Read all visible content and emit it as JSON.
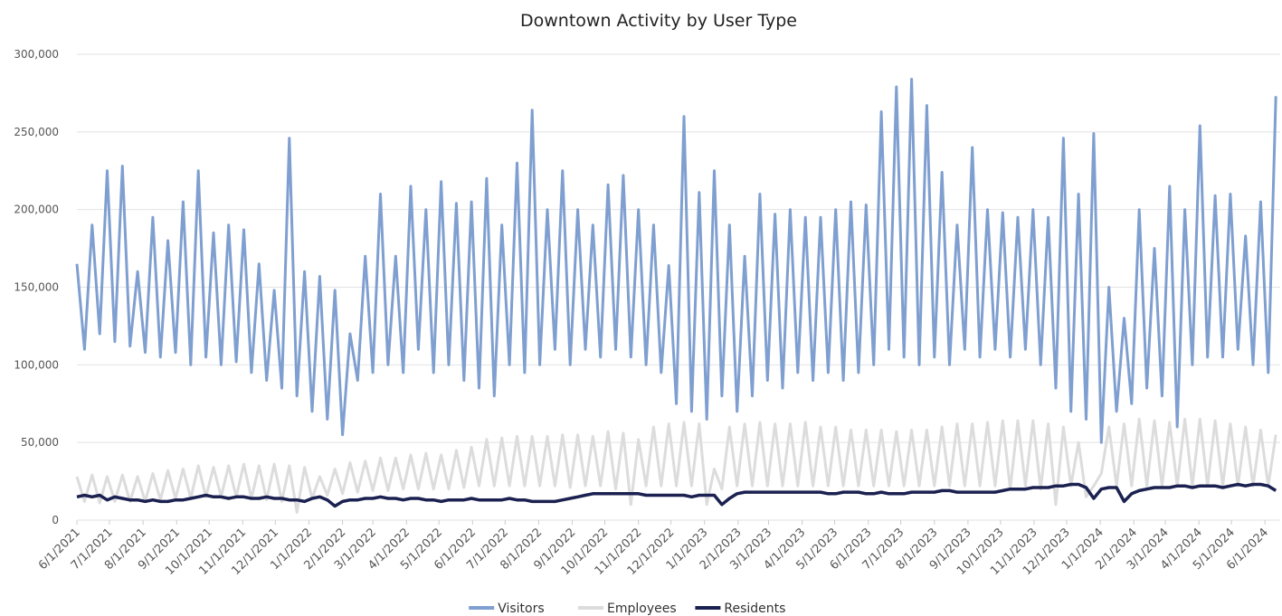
{
  "chart_data": {
    "type": "line",
    "title": "Downtown Activity by User Type",
    "x": [
      "2021-06-01",
      "2021-06-08",
      "2021-06-15",
      "2021-06-22",
      "2021-06-29",
      "2021-07-06",
      "2021-07-13",
      "2021-07-20",
      "2021-07-27",
      "2021-08-03",
      "2021-08-10",
      "2021-08-17",
      "2021-08-24",
      "2021-08-31",
      "2021-09-07",
      "2021-09-14",
      "2021-09-21",
      "2021-09-28",
      "2021-10-05",
      "2021-10-12",
      "2021-10-19",
      "2021-10-26",
      "2021-11-02",
      "2021-11-09",
      "2021-11-16",
      "2021-11-23",
      "2021-11-30",
      "2021-12-07",
      "2021-12-14",
      "2021-12-21",
      "2021-12-28",
      "2022-01-04",
      "2022-01-11",
      "2022-01-18",
      "2022-01-25",
      "2022-02-01",
      "2022-02-08",
      "2022-02-15",
      "2022-02-22",
      "2022-03-01",
      "2022-03-08",
      "2022-03-15",
      "2022-03-22",
      "2022-03-29",
      "2022-04-05",
      "2022-04-12",
      "2022-04-19",
      "2022-04-26",
      "2022-05-03",
      "2022-05-10",
      "2022-05-17",
      "2022-05-24",
      "2022-05-31",
      "2022-06-07",
      "2022-06-14",
      "2022-06-21",
      "2022-06-28",
      "2022-07-05",
      "2022-07-12",
      "2022-07-19",
      "2022-07-26",
      "2022-08-02",
      "2022-08-09",
      "2022-08-16",
      "2022-08-23",
      "2022-08-30",
      "2022-09-06",
      "2022-09-13",
      "2022-09-20",
      "2022-09-27",
      "2022-10-04",
      "2022-10-11",
      "2022-10-18",
      "2022-10-25",
      "2022-11-01",
      "2022-11-08",
      "2022-11-15",
      "2022-11-22",
      "2022-11-29",
      "2022-12-06",
      "2022-12-13",
      "2022-12-20",
      "2022-12-27",
      "2023-01-03",
      "2023-01-10",
      "2023-01-17",
      "2023-01-24",
      "2023-01-31",
      "2023-02-07",
      "2023-02-14",
      "2023-02-21",
      "2023-02-28",
      "2023-03-07",
      "2023-03-14",
      "2023-03-21",
      "2023-03-28",
      "2023-04-04",
      "2023-04-11",
      "2023-04-18",
      "2023-04-25",
      "2023-05-02",
      "2023-05-09",
      "2023-05-16",
      "2023-05-23",
      "2023-05-30",
      "2023-06-06",
      "2023-06-13",
      "2023-06-20",
      "2023-06-27",
      "2023-07-04",
      "2023-07-11",
      "2023-07-18",
      "2023-07-25",
      "2023-08-01",
      "2023-08-08",
      "2023-08-15",
      "2023-08-22",
      "2023-08-29",
      "2023-09-05",
      "2023-09-12",
      "2023-09-19",
      "2023-09-26",
      "2023-10-03",
      "2023-10-10",
      "2023-10-17",
      "2023-10-24",
      "2023-10-31",
      "2023-11-07",
      "2023-11-14",
      "2023-11-21",
      "2023-11-28",
      "2023-12-05",
      "2023-12-12",
      "2023-12-19",
      "2023-12-26",
      "2024-01-02",
      "2024-01-09",
      "2024-01-16",
      "2024-01-23",
      "2024-01-30",
      "2024-02-06",
      "2024-02-13",
      "2024-02-20",
      "2024-02-27",
      "2024-03-05",
      "2024-03-12",
      "2024-03-19",
      "2024-03-26",
      "2024-04-02",
      "2024-04-09",
      "2024-04-16",
      "2024-04-23",
      "2024-04-30",
      "2024-05-07",
      "2024-05-14",
      "2024-05-21",
      "2024-05-28",
      "2024-06-04",
      "2024-06-11"
    ],
    "series": [
      {
        "name": "Visitors",
        "color": "#7f9fd0",
        "values": [
          165000,
          110000,
          190000,
          120000,
          225000,
          115000,
          228000,
          112000,
          160000,
          108000,
          195000,
          105000,
          180000,
          108000,
          205000,
          100000,
          225000,
          105000,
          185000,
          100000,
          190000,
          102000,
          187000,
          95000,
          165000,
          90000,
          148000,
          85000,
          246000,
          80000,
          160000,
          70000,
          157000,
          65000,
          148000,
          55000,
          120000,
          90000,
          170000,
          95000,
          210000,
          100000,
          170000,
          95000,
          215000,
          110000,
          200000,
          95000,
          218000,
          100000,
          204000,
          90000,
          205000,
          85000,
          220000,
          80000,
          190000,
          100000,
          230000,
          95000,
          264000,
          100000,
          200000,
          110000,
          225000,
          100000,
          200000,
          110000,
          190000,
          105000,
          216000,
          110000,
          222000,
          105000,
          200000,
          100000,
          190000,
          95000,
          164000,
          75000,
          260000,
          70000,
          211000,
          65000,
          225000,
          80000,
          190000,
          70000,
          170000,
          80000,
          210000,
          90000,
          197000,
          85000,
          200000,
          95000,
          195000,
          90000,
          195000,
          95000,
          200000,
          90000,
          205000,
          95000,
          203000,
          100000,
          263000,
          110000,
          279000,
          105000,
          284000,
          100000,
          267000,
          105000,
          224000,
          100000,
          190000,
          110000,
          240000,
          105000,
          200000,
          110000,
          198000,
          105000,
          195000,
          110000,
          200000,
          100000,
          195000,
          85000,
          246000,
          70000,
          210000,
          65000,
          249000,
          50000,
          150000,
          70000,
          130000,
          75000,
          200000,
          85000,
          175000,
          80000,
          215000,
          60000,
          200000,
          100000,
          254000,
          105000,
          209000,
          105000,
          210000,
          110000,
          183000,
          100000,
          205000,
          95000,
          273000
        ]
      },
      {
        "name": "Employees",
        "color": "#dcdcdc",
        "values": [
          28000,
          12000,
          29000,
          11000,
          28000,
          12000,
          29000,
          12000,
          28000,
          12000,
          30000,
          13000,
          32000,
          14000,
          33000,
          14000,
          35000,
          15000,
          34000,
          15000,
          35000,
          15000,
          36000,
          14000,
          35000,
          13000,
          36000,
          12000,
          35000,
          5000,
          34000,
          14000,
          28000,
          16000,
          33000,
          17000,
          37000,
          18000,
          38000,
          19000,
          40000,
          19000,
          40000,
          20000,
          42000,
          20000,
          43000,
          20000,
          42000,
          20000,
          45000,
          21000,
          47000,
          22000,
          52000,
          22000,
          53000,
          22000,
          54000,
          22000,
          54000,
          22000,
          54000,
          22000,
          55000,
          21000,
          55000,
          22000,
          54000,
          22000,
          57000,
          20000,
          56000,
          10000,
          52000,
          22000,
          60000,
          22000,
          62000,
          22000,
          63000,
          22000,
          62000,
          10000,
          33000,
          20000,
          60000,
          22000,
          62000,
          22000,
          63000,
          22000,
          62000,
          22000,
          62000,
          22000,
          63000,
          22000,
          60000,
          22000,
          60000,
          22000,
          58000,
          22000,
          58000,
          22000,
          58000,
          22000,
          57000,
          22000,
          58000,
          22000,
          58000,
          22000,
          60000,
          22000,
          62000,
          22000,
          62000,
          22000,
          63000,
          22000,
          64000,
          20000,
          64000,
          22000,
          64000,
          20000,
          62000,
          10000,
          60000,
          22000,
          50000,
          15000,
          22000,
          30000,
          60000,
          22000,
          62000,
          22000,
          65000,
          22000,
          64000,
          22000,
          63000,
          22000,
          65000,
          22000,
          65000,
          22000,
          64000,
          22000,
          62000,
          22000,
          60000,
          22000,
          58000,
          22000,
          55000
        ]
      },
      {
        "name": "Residents",
        "color": "#1b2150",
        "values": [
          15000,
          16000,
          15000,
          16000,
          13000,
          15000,
          14000,
          13000,
          13000,
          12000,
          13000,
          12000,
          12000,
          13000,
          13000,
          14000,
          15000,
          16000,
          15000,
          15000,
          14000,
          15000,
          15000,
          14000,
          14000,
          15000,
          14000,
          14000,
          13000,
          13000,
          12000,
          14000,
          15000,
          13000,
          9000,
          12000,
          13000,
          13000,
          14000,
          14000,
          15000,
          14000,
          14000,
          13000,
          14000,
          14000,
          13000,
          13000,
          12000,
          13000,
          13000,
          13000,
          14000,
          13000,
          13000,
          13000,
          13000,
          14000,
          13000,
          13000,
          12000,
          12000,
          12000,
          12000,
          13000,
          14000,
          15000,
          16000,
          17000,
          17000,
          17000,
          17000,
          17000,
          17000,
          17000,
          16000,
          16000,
          16000,
          16000,
          16000,
          16000,
          15000,
          16000,
          16000,
          16000,
          10000,
          14000,
          17000,
          18000,
          18000,
          18000,
          18000,
          18000,
          18000,
          18000,
          18000,
          18000,
          18000,
          18000,
          17000,
          17000,
          18000,
          18000,
          18000,
          17000,
          17000,
          18000,
          17000,
          17000,
          17000,
          18000,
          18000,
          18000,
          18000,
          19000,
          19000,
          18000,
          18000,
          18000,
          18000,
          18000,
          18000,
          19000,
          20000,
          20000,
          20000,
          21000,
          21000,
          21000,
          22000,
          22000,
          23000,
          23000,
          21000,
          14000,
          20000,
          21000,
          21000,
          12000,
          17000,
          19000,
          20000,
          21000,
          21000,
          21000,
          22000,
          22000,
          21000,
          22000,
          22000,
          22000,
          21000,
          22000,
          23000,
          22000,
          23000,
          23000,
          22000,
          19000
        ]
      }
    ],
    "xlim": [
      "2021-06-01",
      "2024-06-15"
    ],
    "xticks": [
      {
        "value": "2021-06-01",
        "label": "6/1/2021"
      },
      {
        "value": "2021-07-01",
        "label": "7/1/2021"
      },
      {
        "value": "2021-08-01",
        "label": "8/1/2021"
      },
      {
        "value": "2021-09-01",
        "label": "9/1/2021"
      },
      {
        "value": "2021-10-01",
        "label": "10/1/2021"
      },
      {
        "value": "2021-11-01",
        "label": "11/1/2021"
      },
      {
        "value": "2021-12-01",
        "label": "12/1/2021"
      },
      {
        "value": "2022-01-01",
        "label": "1/1/2022"
      },
      {
        "value": "2022-02-01",
        "label": "2/1/2022"
      },
      {
        "value": "2022-03-01",
        "label": "3/1/2022"
      },
      {
        "value": "2022-04-01",
        "label": "4/1/2022"
      },
      {
        "value": "2022-05-01",
        "label": "5/1/2022"
      },
      {
        "value": "2022-06-01",
        "label": "6/1/2022"
      },
      {
        "value": "2022-07-01",
        "label": "7/1/2022"
      },
      {
        "value": "2022-08-01",
        "label": "8/1/2022"
      },
      {
        "value": "2022-09-01",
        "label": "9/1/2022"
      },
      {
        "value": "2022-10-01",
        "label": "10/1/2022"
      },
      {
        "value": "2022-11-01",
        "label": "11/1/2022"
      },
      {
        "value": "2022-12-01",
        "label": "12/1/2022"
      },
      {
        "value": "2023-01-01",
        "label": "1/1/2023"
      },
      {
        "value": "2023-02-01",
        "label": "2/1/2023"
      },
      {
        "value": "2023-03-01",
        "label": "3/1/2023"
      },
      {
        "value": "2023-04-01",
        "label": "4/1/2023"
      },
      {
        "value": "2023-05-01",
        "label": "5/1/2023"
      },
      {
        "value": "2023-06-01",
        "label": "6/1/2023"
      },
      {
        "value": "2023-07-01",
        "label": "7/1/2023"
      },
      {
        "value": "2023-08-01",
        "label": "8/1/2023"
      },
      {
        "value": "2023-09-01",
        "label": "9/1/2023"
      },
      {
        "value": "2023-10-01",
        "label": "10/1/2023"
      },
      {
        "value": "2023-11-01",
        "label": "11/1/2023"
      },
      {
        "value": "2023-12-01",
        "label": "12/1/2023"
      },
      {
        "value": "2024-01-01",
        "label": "1/1/2024"
      },
      {
        "value": "2024-02-01",
        "label": "2/1/2024"
      },
      {
        "value": "2024-03-01",
        "label": "3/1/2024"
      },
      {
        "value": "2024-04-01",
        "label": "4/1/2024"
      },
      {
        "value": "2024-05-01",
        "label": "5/1/2024"
      },
      {
        "value": "2024-06-01",
        "label": "6/1/2024"
      }
    ],
    "ylim": [
      0,
      300000
    ],
    "yticks": [
      0,
      {
        "value": 50000,
        "label": "50,000"
      },
      {
        "value": 100000,
        "label": "100,000"
      },
      {
        "value": 150000,
        "label": "150,000"
      },
      {
        "value": 200000,
        "label": "200,000"
      },
      {
        "value": 250000,
        "label": "250,000"
      },
      {
        "value": 300000,
        "label": "300,000"
      }
    ],
    "grid": true,
    "legend": "bottom"
  }
}
